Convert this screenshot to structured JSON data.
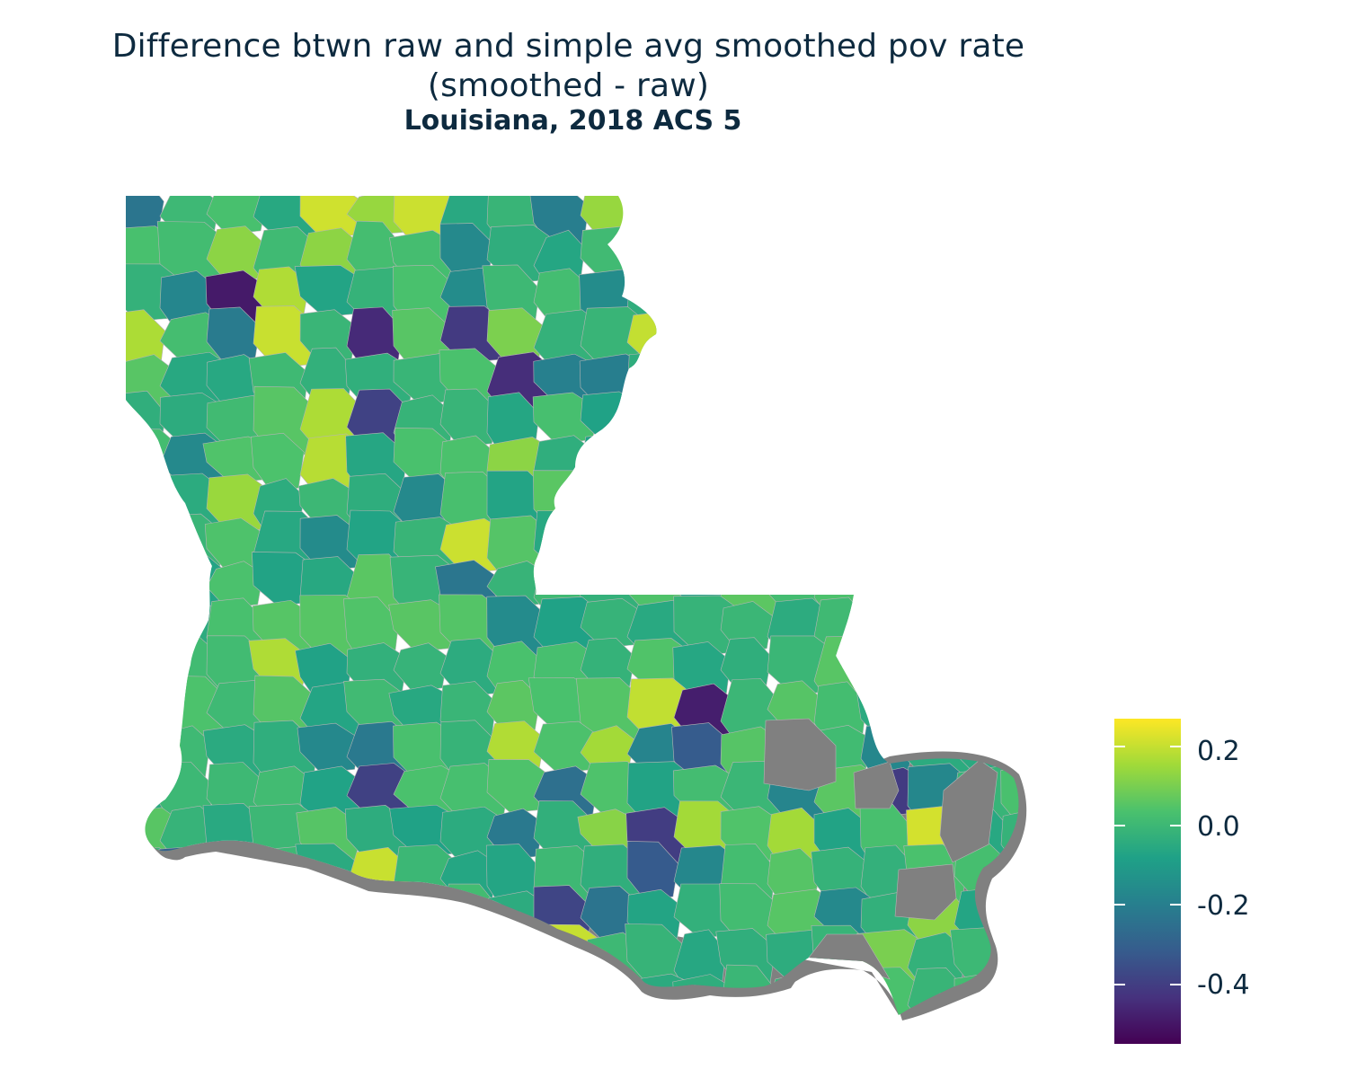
{
  "title_line1": "Difference btwn raw and simple avg smoothed pov rate",
  "title_line2": "(smoothed - raw)",
  "subtitle": "Louisiana, 2018 ACS 5",
  "legend": {
    "min": -0.55,
    "max": 0.27,
    "ticks": [
      {
        "value": 0.2,
        "label": "0.2"
      },
      {
        "value": 0.0,
        "label": "0.0"
      },
      {
        "value": -0.2,
        "label": "-0.2"
      },
      {
        "value": -0.4,
        "label": "-0.4"
      }
    ],
    "palette": "viridis"
  },
  "colors": {
    "na_fill": "#808080",
    "tract_border": "#b5b5b5",
    "background": "#ffffff",
    "text": "#0d2a3f"
  }
}
